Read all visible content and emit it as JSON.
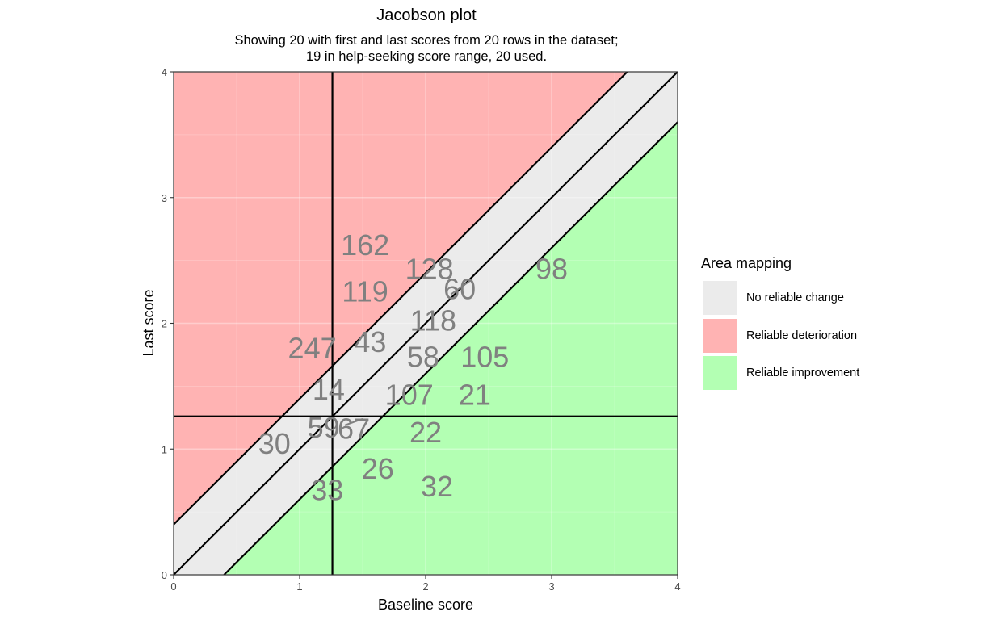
{
  "chart_data": {
    "type": "scatter",
    "title": "Jacobson plot",
    "subtitle_lines": [
      "Showing 20 with first and last scores from 20 rows in the dataset;",
      "19 in help-seeking score range, 20 used."
    ],
    "xlabel": "Baseline score",
    "ylabel": "Last score",
    "xlim": [
      0,
      4
    ],
    "ylim": [
      0,
      4
    ],
    "x_ticks": [
      0,
      1,
      2,
      3,
      4
    ],
    "y_ticks": [
      0,
      1,
      2,
      3,
      4
    ],
    "grid": true,
    "cutoff": 1.26,
    "reliable_change_band": 0.4,
    "legend": {
      "title": "Area mapping",
      "placement": "right",
      "items": [
        {
          "label": "No reliable change",
          "color": "#EBEBEB"
        },
        {
          "label": "Reliable deterioration",
          "color": "#FFB3B3"
        },
        {
          "label": "Reliable improvement",
          "color": "#B3FFB3"
        }
      ]
    },
    "colors": {
      "no_change": "#EBEBEB",
      "deterioration": "#FFB3B3",
      "improvement": "#B3FFB3",
      "point_label": "#808080",
      "lines": "#000000"
    },
    "points": [
      {
        "label": "162",
        "x": 1.52,
        "y": 2.62
      },
      {
        "label": "119",
        "x": 1.52,
        "y": 2.25
      },
      {
        "label": "128",
        "x": 2.03,
        "y": 2.43
      },
      {
        "label": "60",
        "x": 2.27,
        "y": 2.27
      },
      {
        "label": "98",
        "x": 3.0,
        "y": 2.43
      },
      {
        "label": "118",
        "x": 2.06,
        "y": 2.02
      },
      {
        "label": "247",
        "x": 1.1,
        "y": 1.8
      },
      {
        "label": "43",
        "x": 1.56,
        "y": 1.85
      },
      {
        "label": "58",
        "x": 1.98,
        "y": 1.73
      },
      {
        "label": "105",
        "x": 2.47,
        "y": 1.73
      },
      {
        "label": "14",
        "x": 1.23,
        "y": 1.47
      },
      {
        "label": "107",
        "x": 1.87,
        "y": 1.43
      },
      {
        "label": "21",
        "x": 2.39,
        "y": 1.43
      },
      {
        "label": "59",
        "x": 1.19,
        "y": 1.17
      },
      {
        "label": "67",
        "x": 1.43,
        "y": 1.16
      },
      {
        "label": "22",
        "x": 2.0,
        "y": 1.13
      },
      {
        "label": "30",
        "x": 0.8,
        "y": 1.04
      },
      {
        "label": "26",
        "x": 1.62,
        "y": 0.84
      },
      {
        "label": "33",
        "x": 1.22,
        "y": 0.67
      },
      {
        "label": "32",
        "x": 2.09,
        "y": 0.7
      }
    ]
  }
}
